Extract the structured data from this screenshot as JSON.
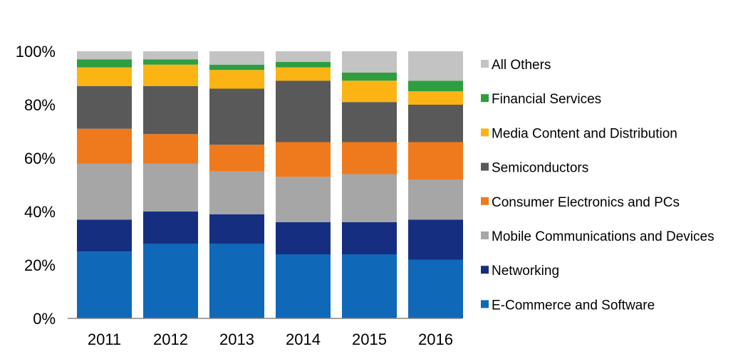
{
  "chart_data": {
    "type": "bar",
    "stacked": true,
    "categories": [
      "2011",
      "2012",
      "2013",
      "2014",
      "2015",
      "2016"
    ],
    "y_ticks": [
      "0%",
      "20%",
      "40%",
      "60%",
      "80%",
      "100%"
    ],
    "ylim": [
      0,
      100
    ],
    "grid": false,
    "legend_position": "right",
    "title": "",
    "xlabel": "",
    "ylabel": "",
    "series": [
      {
        "name": "E-Commerce and Software",
        "color": "#1068b8",
        "values": [
          25,
          28,
          28,
          24,
          24,
          22
        ]
      },
      {
        "name": "Networking",
        "color": "#162e80",
        "values": [
          12,
          12,
          11,
          12,
          12,
          15
        ]
      },
      {
        "name": "Mobile Communications and Devices",
        "color": "#a6a6a6",
        "values": [
          21,
          18,
          16,
          17,
          18,
          15
        ]
      },
      {
        "name": "Consumer Electronics and PCs",
        "color": "#ef7a1e",
        "values": [
          13,
          11,
          10,
          13,
          12,
          14
        ]
      },
      {
        "name": "Semiconductors",
        "color": "#595959",
        "values": [
          16,
          18,
          21,
          23,
          15,
          14
        ]
      },
      {
        "name": "Media Content and Distribution",
        "color": "#fcb414",
        "values": [
          7,
          8,
          7,
          5,
          8,
          5
        ]
      },
      {
        "name": "Financial Services",
        "color": "#2e9e3f",
        "values": [
          3,
          2,
          2,
          2,
          3,
          4
        ]
      },
      {
        "name": "All Others",
        "color": "#c3c3c3",
        "values": [
          3,
          3,
          5,
          4,
          8,
          11
        ]
      }
    ]
  }
}
